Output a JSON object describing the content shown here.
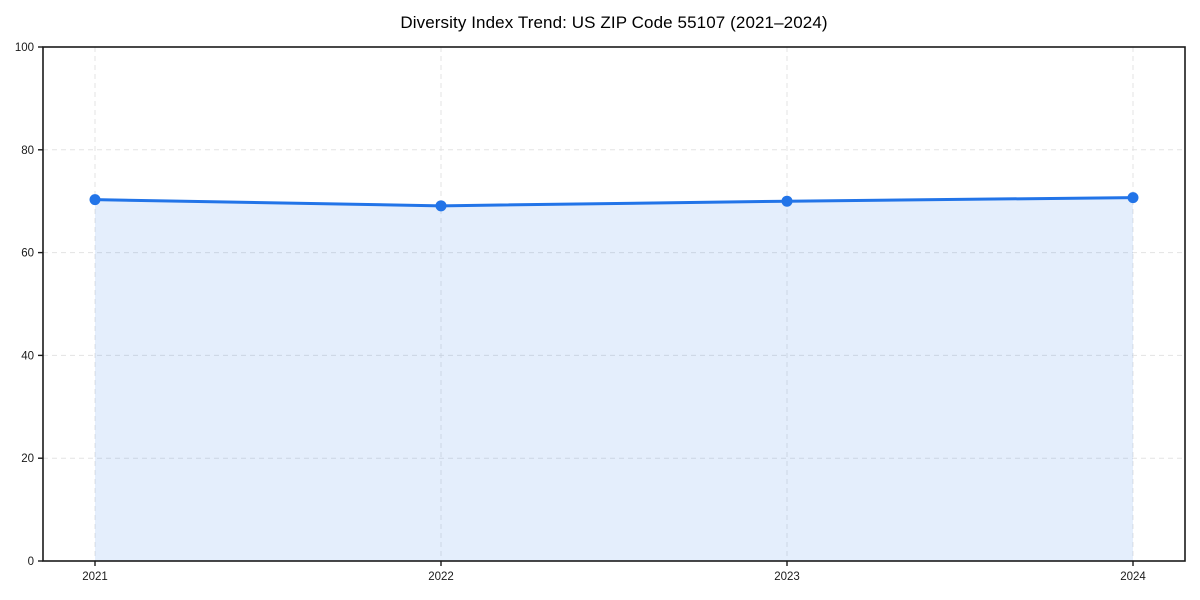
{
  "chart_data": {
    "type": "area",
    "title": "Diversity Index Trend: US ZIP Code 55107 (2021–2024)",
    "categories": [
      2021,
      2022,
      2023,
      2024
    ],
    "values": [
      70.3,
      69.1,
      70.0,
      70.7
    ],
    "xlabel": "",
    "ylabel": "",
    "ylim": [
      0,
      100
    ],
    "yticks": [
      0,
      20,
      40,
      60,
      80,
      100
    ],
    "xticks": [
      "2021",
      "2022",
      "2023",
      "2024"
    ],
    "grid": true,
    "grid_style": "dashed",
    "legend_position": "none",
    "colors": {
      "line": "#2274e8",
      "marker": "#2274e8",
      "fill": "rgba(34,116,232,0.12)",
      "grid": "#e3e3e3",
      "spine": "#1a1a1a",
      "tick_label": "#1a1a1a",
      "title": "#000000",
      "background": "#ffffff"
    }
  }
}
